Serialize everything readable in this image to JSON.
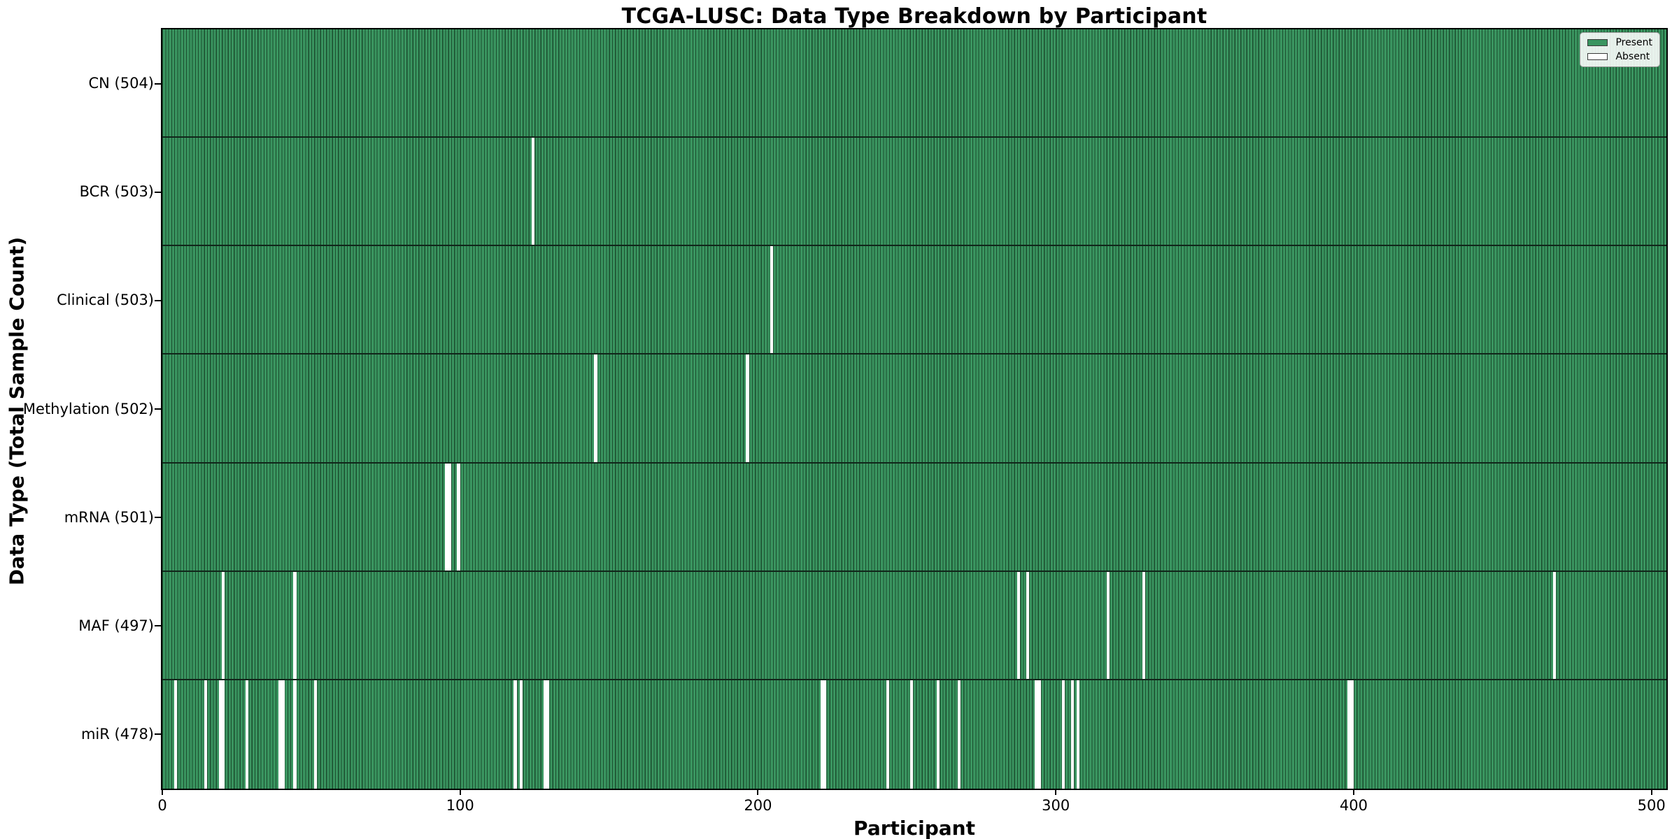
{
  "chart_data": {
    "type": "heatmap",
    "title": "TCGA-LUSC: Data Type Breakdown by Participant",
    "xlabel": "Participant",
    "ylabel": "Data Type (Total Sample Count)",
    "x_ticks": [
      0,
      100,
      200,
      300,
      400,
      500
    ],
    "x_range": [
      0,
      505
    ],
    "n_participants": 504,
    "grid": false,
    "legend_position": "upper right",
    "legend": [
      {
        "label": "Present",
        "color": "#3a9560"
      },
      {
        "label": "Absent",
        "color": "#ffffff"
      }
    ],
    "colors": {
      "present": "#3a9560",
      "absent": "#ffffff",
      "bar_edge": "#1b4d2e",
      "row_separator": "#11261a",
      "axis": "#000000"
    },
    "rows": [
      {
        "key": "cn",
        "label": "CN (504)",
        "total": 504,
        "absent": []
      },
      {
        "key": "bcr",
        "label": "BCR (503)",
        "total": 503,
        "absent": [
          124
        ]
      },
      {
        "key": "clinical",
        "label": "Clinical (503)",
        "total": 503,
        "absent": [
          204
        ]
      },
      {
        "key": "methylation",
        "label": "Methylation (502)",
        "total": 502,
        "absent": [
          145,
          196
        ]
      },
      {
        "key": "mrna",
        "label": "mRNA (501)",
        "total": 501,
        "absent": [
          95,
          96,
          99
        ]
      },
      {
        "key": "maf",
        "label": "MAF (497)",
        "total": 497,
        "absent": [
          20,
          44,
          287,
          290,
          317,
          329,
          467
        ]
      },
      {
        "key": "mir",
        "label": "miR (478)",
        "total": 478,
        "absent": [
          4,
          14,
          19,
          20,
          28,
          39,
          40,
          44,
          51,
          118,
          120,
          128,
          129,
          221,
          222,
          243,
          251,
          260,
          267,
          293,
          294,
          302,
          305,
          307,
          398,
          399
        ]
      }
    ]
  }
}
